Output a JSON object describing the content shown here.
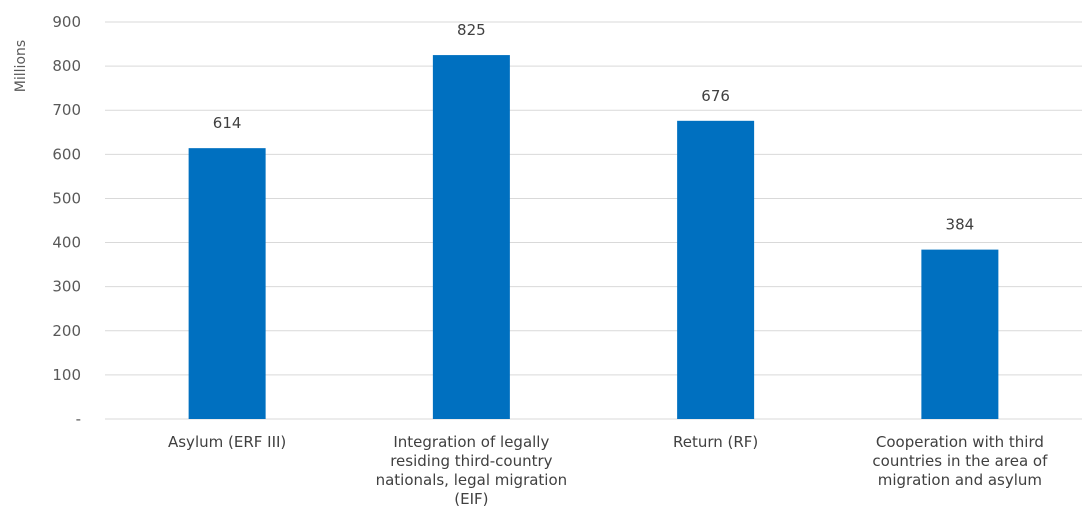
{
  "chart_data": {
    "type": "bar",
    "title": "",
    "xlabel": "",
    "ylabel": "Millions",
    "categories": [
      [
        "Asylum (ERF III)"
      ],
      [
        "Integration of legally",
        "residing third-country",
        "nationals, legal migration",
        "(EIF)"
      ],
      [
        "Return (RF)"
      ],
      [
        "Cooperation with third",
        "countries in the area of",
        "migration and asylum"
      ]
    ],
    "values": [
      614,
      825,
      676,
      384
    ],
    "data_labels": [
      "614",
      "825",
      "676",
      "384"
    ],
    "ylim": [
      0,
      900
    ],
    "yticks": [
      0,
      100,
      200,
      300,
      400,
      500,
      600,
      700,
      800,
      900
    ],
    "ytick_labels": [
      "-",
      "100",
      "200",
      "300",
      "400",
      "500",
      "600",
      "700",
      "800",
      "900"
    ],
    "grid": true,
    "legend": "none",
    "colors": {
      "bar": "#0070c0",
      "grid": "#d9d9d9"
    }
  }
}
